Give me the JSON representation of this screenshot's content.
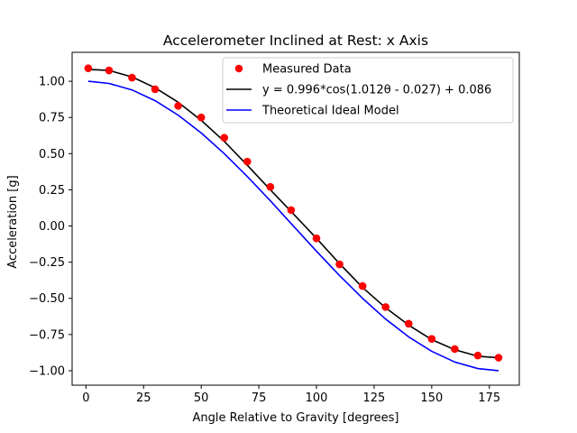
{
  "chart_data": {
    "type": "scatter",
    "title": "Accelerometer Inclined at Rest: x Axis",
    "xlabel": "Angle Relative to Gravity [degrees]",
    "ylabel": "Acceleration [g]",
    "xlim": [
      -6,
      188
    ],
    "ylim": [
      -1.1,
      1.2
    ],
    "xticks": [
      0,
      25,
      50,
      75,
      100,
      125,
      150,
      175
    ],
    "xtick_labels": [
      "0",
      "25",
      "50",
      "75",
      "100",
      "125",
      "150",
      "175"
    ],
    "yticks": [
      -1.0,
      -0.75,
      -0.5,
      -0.25,
      0.0,
      0.25,
      0.5,
      0.75,
      1.0
    ],
    "ytick_labels": [
      "−1.00",
      "−0.75",
      "−0.50",
      "−0.25",
      "0.00",
      "0.25",
      "0.50",
      "0.75",
      "1.00"
    ],
    "grid": false,
    "legend_position": "top-right",
    "series": [
      {
        "name": "Measured Data",
        "kind": "scatter",
        "color": "#ff0000",
        "x": [
          1,
          10,
          20,
          30,
          40,
          50,
          60,
          70,
          80,
          89,
          100,
          110,
          120,
          130,
          140,
          150,
          160,
          170,
          179
        ],
        "y": [
          1.09,
          1.075,
          1.025,
          0.945,
          0.83,
          0.75,
          0.61,
          0.445,
          0.27,
          0.11,
          -0.085,
          -0.265,
          -0.415,
          -0.56,
          -0.675,
          -0.78,
          -0.85,
          -0.895,
          -0.91
        ]
      },
      {
        "name": "y = 0.996*cos(1.012θ - 0.027) + 0.086",
        "kind": "line",
        "color": "#000000",
        "x": [
          1,
          10,
          20,
          30,
          40,
          50,
          60,
          70,
          80,
          89,
          100,
          110,
          120,
          130,
          140,
          150,
          160,
          170,
          179
        ],
        "y": [
          1.082,
          1.075,
          1.03,
          0.955,
          0.855,
          0.73,
          0.585,
          0.42,
          0.25,
          0.1,
          -0.085,
          -0.26,
          -0.425,
          -0.565,
          -0.685,
          -0.785,
          -0.855,
          -0.9,
          -0.91
        ]
      },
      {
        "name": "Theoretical Ideal Model",
        "kind": "line",
        "color": "#0000ff",
        "x": [
          1,
          10,
          20,
          30,
          40,
          50,
          60,
          70,
          80,
          89,
          100,
          110,
          120,
          130,
          140,
          150,
          160,
          170,
          179
        ],
        "y": [
          1.0,
          0.985,
          0.94,
          0.866,
          0.766,
          0.643,
          0.5,
          0.342,
          0.174,
          0.017,
          -0.174,
          -0.342,
          -0.5,
          -0.643,
          -0.766,
          -0.866,
          -0.94,
          -0.985,
          -1.0
        ]
      }
    ]
  }
}
